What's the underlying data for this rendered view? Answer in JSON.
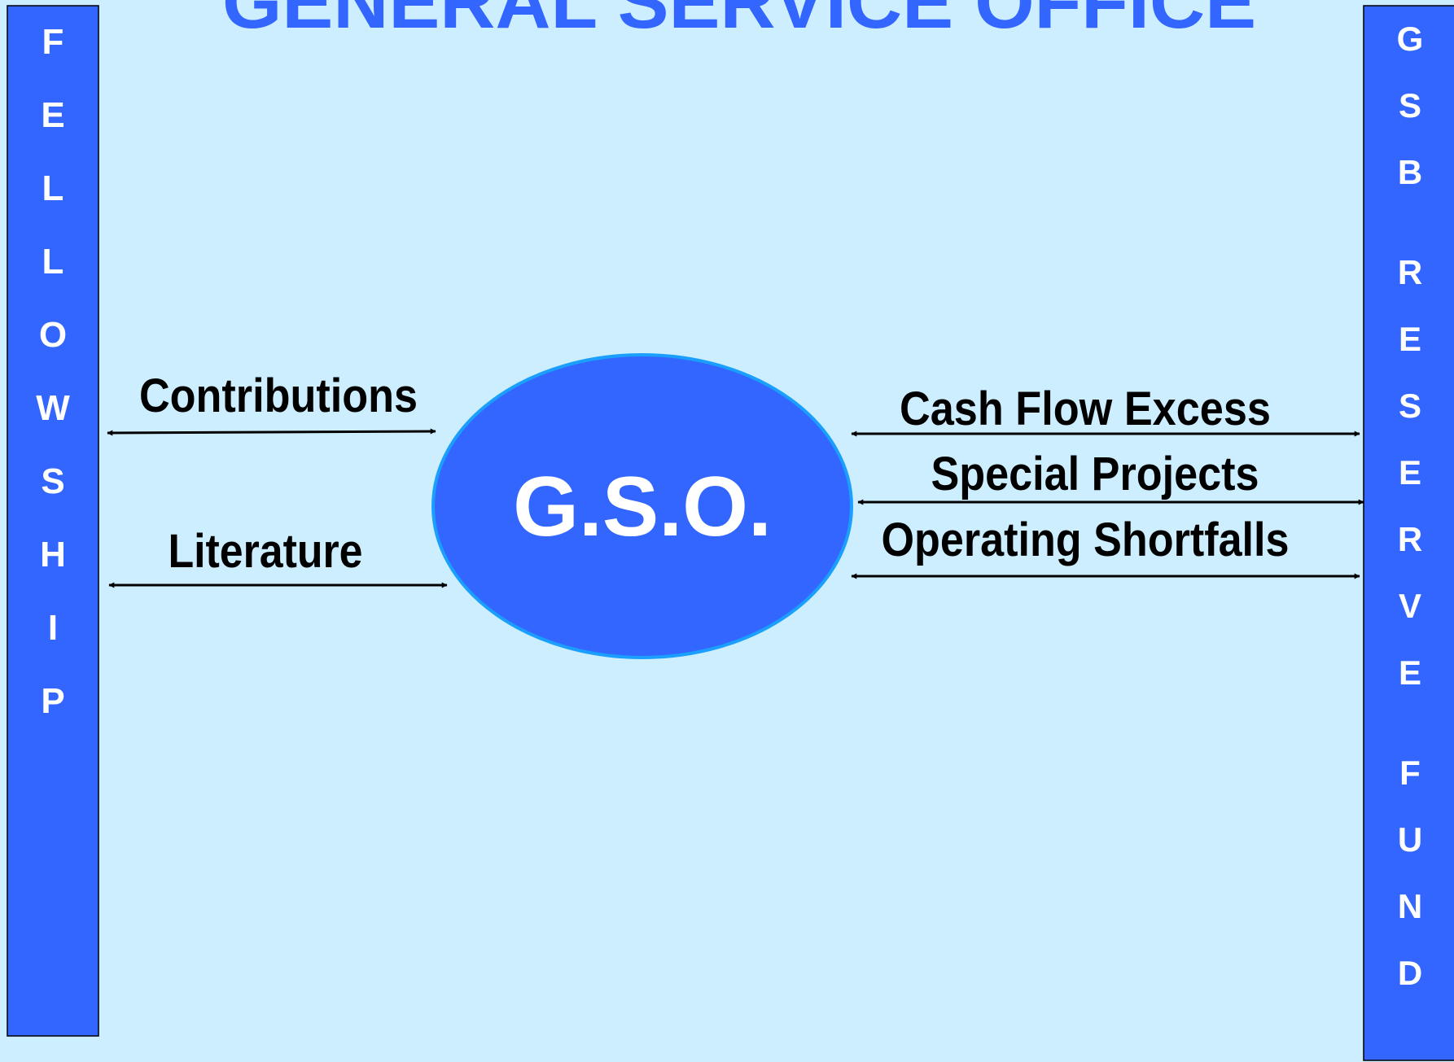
{
  "title": "GENERAL SERVICE OFFICE",
  "left_panel": {
    "letters": [
      "F",
      "E",
      "L",
      "L",
      "O",
      "W",
      "S",
      "H",
      "I",
      "P"
    ]
  },
  "right_panel": {
    "words": [
      [
        "G",
        "S",
        "B"
      ],
      [
        "R",
        "E",
        "S",
        "E",
        "R",
        "V",
        "E"
      ],
      [
        "F",
        "U",
        "N",
        "D"
      ]
    ]
  },
  "center": {
    "label": "G.S.O."
  },
  "left_flows": [
    "Contributions",
    "Literature"
  ],
  "right_flows": [
    "Cash Flow Excess",
    "Special Projects",
    "Operating Shortfalls"
  ]
}
